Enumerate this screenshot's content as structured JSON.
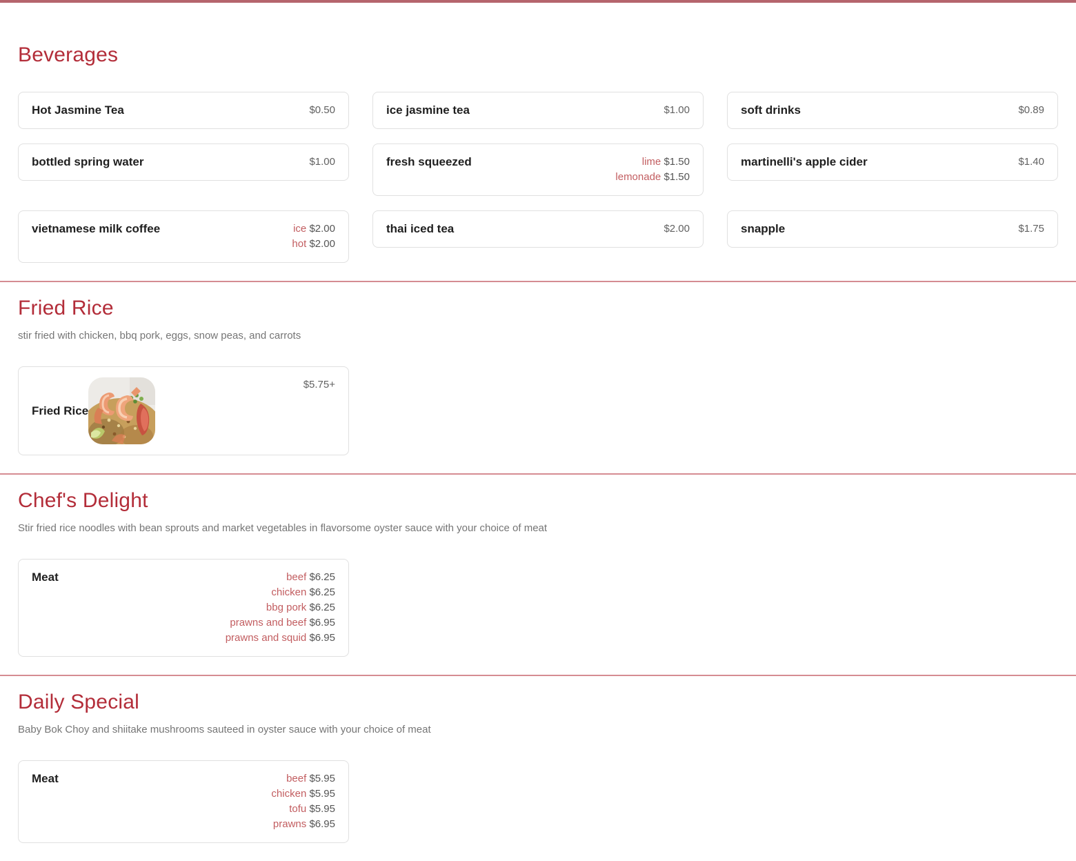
{
  "page": {
    "top_bar_color": "#b5656d",
    "accent_color": "#b32d39"
  },
  "sections": [
    {
      "id": "beverages",
      "title": "Beverages",
      "description": "",
      "items": [
        {
          "name": "Hot Jasmine Tea",
          "price": "$0.50"
        },
        {
          "name": "ice jasmine tea",
          "price": "$1.00"
        },
        {
          "name": "soft drinks",
          "price": "$0.89"
        },
        {
          "name": "bottled spring water",
          "price": "$1.00"
        },
        {
          "name": "fresh squeezed",
          "variants": [
            {
              "label": "lime",
              "price": "$1.50"
            },
            {
              "label": "lemonade",
              "price": "$1.50"
            }
          ]
        },
        {
          "name": "martinelli's apple cider",
          "price": "$1.40"
        },
        {
          "name": "vietnamese milk coffee",
          "variants": [
            {
              "label": "ice",
              "price": "$2.00"
            },
            {
              "label": "hot",
              "price": "$2.00"
            }
          ]
        },
        {
          "name": "thai iced tea",
          "price": "$2.00"
        },
        {
          "name": "snapple",
          "price": "$1.75"
        }
      ]
    },
    {
      "id": "fried-rice",
      "title": "Fried Rice",
      "description": "stir fried with chicken, bbq pork, eggs, snow peas, and carrots",
      "items": [
        {
          "name": "Fried Rice",
          "price": "$5.75+",
          "image": "fried-rice-photo"
        }
      ]
    },
    {
      "id": "chefs-delight",
      "title": "Chef's Delight",
      "description": "Stir fried rice noodles with bean sprouts and market vegetables in flavorsome oyster sauce with your choice of meat",
      "items": [
        {
          "name": "Meat",
          "variants": [
            {
              "label": "beef",
              "price": "$6.25"
            },
            {
              "label": "chicken",
              "price": "$6.25"
            },
            {
              "label": "bbg pork",
              "price": "$6.25"
            },
            {
              "label": "prawns and beef",
              "price": "$6.95"
            },
            {
              "label": "prawns and squid",
              "price": "$6.95"
            }
          ]
        }
      ]
    },
    {
      "id": "daily-special",
      "title": "Daily Special",
      "description": "Baby Bok Choy and shiitake mushrooms sauteed in oyster sauce with your choice of meat",
      "items": [
        {
          "name": "Meat",
          "variants": [
            {
              "label": "beef",
              "price": "$5.95"
            },
            {
              "label": "chicken",
              "price": "$5.95"
            },
            {
              "label": "tofu",
              "price": "$5.95"
            },
            {
              "label": "prawns",
              "price": "$6.95"
            }
          ]
        }
      ]
    }
  ]
}
